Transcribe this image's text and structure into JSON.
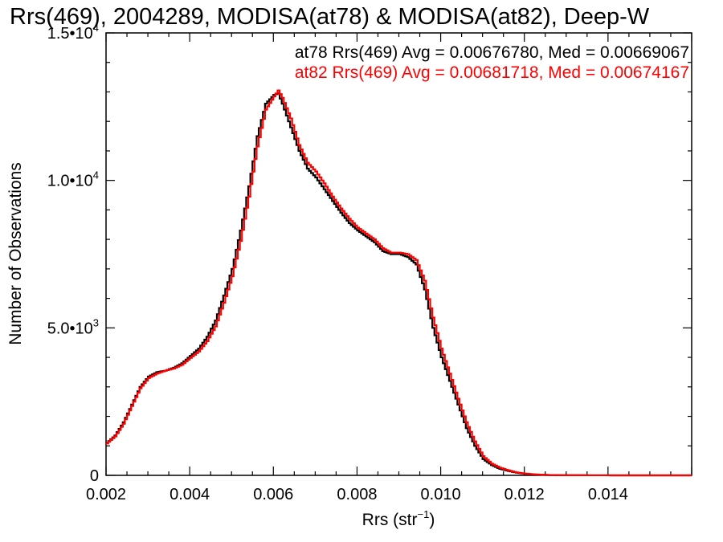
{
  "chart_data": {
    "type": "line",
    "title": "Rrs(469), 2004289, MODISA(at78) & MODISA(at82), Deep-W",
    "xlabel_main": "Rrs (str",
    "xlabel_sup": "−1",
    "xlabel_end": ")",
    "ylabel": "Number of Observations",
    "xlim": [
      0.002,
      0.016
    ],
    "ylim": [
      0,
      15000
    ],
    "x_ticks": [
      {
        "value": 0.002,
        "label": "0.002"
      },
      {
        "value": 0.004,
        "label": "0.004"
      },
      {
        "value": 0.006,
        "label": "0.006"
      },
      {
        "value": 0.008,
        "label": "0.008"
      },
      {
        "value": 0.01,
        "label": "0.010"
      },
      {
        "value": 0.012,
        "label": "0.012"
      },
      {
        "value": 0.014,
        "label": "0.014"
      }
    ],
    "y_ticks": [
      {
        "value": 0,
        "mant": "0",
        "exp": ""
      },
      {
        "value": 5000,
        "mant": "5.0•10",
        "exp": "3"
      },
      {
        "value": 10000,
        "mant": "1.0•10",
        "exp": "4"
      },
      {
        "value": 15000,
        "mant": "1.5•10",
        "exp": "4"
      }
    ],
    "series": [
      {
        "name": "at78",
        "color": "#000000",
        "stats_label": "at78 Rrs(469) Avg = 0.00676780, Med = 0.0066906​7",
        "x": [
          0.002,
          0.0022,
          0.0024,
          0.0026,
          0.0028,
          0.003,
          0.0032,
          0.0034,
          0.0036,
          0.0038,
          0.004,
          0.0042,
          0.0044,
          0.0046,
          0.0048,
          0.005,
          0.0052,
          0.0054,
          0.0056,
          0.0058,
          0.006,
          0.0061,
          0.0062,
          0.0064,
          0.0066,
          0.0068,
          0.007,
          0.0072,
          0.0074,
          0.0076,
          0.0078,
          0.008,
          0.0082,
          0.0084,
          0.0086,
          0.0088,
          0.009,
          0.0092,
          0.0094,
          0.0096,
          0.0098,
          0.01,
          0.0102,
          0.0104,
          0.0106,
          0.0108,
          0.011,
          0.0112,
          0.0114,
          0.0116,
          0.0118,
          0.012,
          0.0122,
          0.0124,
          0.0126,
          0.0128,
          0.013,
          0.0135,
          0.014,
          0.015,
          0.016
        ],
        "y": [
          1100,
          1350,
          1800,
          2400,
          3000,
          3350,
          3500,
          3550,
          3650,
          3800,
          4050,
          4300,
          4700,
          5250,
          6100,
          7000,
          8300,
          9800,
          11500,
          12600,
          12900,
          12950,
          12600,
          11800,
          11000,
          10400,
          10100,
          9700,
          9300,
          8900,
          8550,
          8300,
          8100,
          7900,
          7600,
          7500,
          7500,
          7400,
          7150,
          6300,
          5000,
          4000,
          3200,
          2400,
          1600,
          1000,
          550,
          350,
          220,
          150,
          90,
          55,
          30,
          18,
          10,
          6,
          4,
          2,
          1,
          0,
          0
        ]
      },
      {
        "name": "at82",
        "color": "#ff0000",
        "stats_label": "at82 Rrs(469) Avg = 0.00681718, Med = 0.00674167",
        "x": [
          0.002,
          0.0022,
          0.0024,
          0.0026,
          0.0028,
          0.003,
          0.0032,
          0.0034,
          0.0036,
          0.0038,
          0.004,
          0.0042,
          0.0044,
          0.0046,
          0.0048,
          0.005,
          0.0052,
          0.0054,
          0.0056,
          0.0058,
          0.006,
          0.0061,
          0.0062,
          0.0064,
          0.0066,
          0.0068,
          0.007,
          0.0072,
          0.0074,
          0.0076,
          0.0078,
          0.008,
          0.0082,
          0.0084,
          0.0086,
          0.0088,
          0.009,
          0.0092,
          0.0094,
          0.0096,
          0.0098,
          0.01,
          0.0102,
          0.0104,
          0.0106,
          0.0108,
          0.011,
          0.0112,
          0.0114,
          0.0116,
          0.0118,
          0.012,
          0.0122,
          0.0124,
          0.0126,
          0.0128,
          0.013,
          0.0135,
          0.014,
          0.015,
          0.016
        ],
        "y": [
          1080,
          1320,
          1750,
          2350,
          2950,
          3300,
          3450,
          3550,
          3620,
          3750,
          3980,
          4200,
          4550,
          5050,
          5850,
          6750,
          7950,
          9450,
          11150,
          12400,
          12850,
          13050,
          12800,
          12100,
          11200,
          10600,
          10300,
          9900,
          9450,
          9050,
          8700,
          8400,
          8200,
          8000,
          7700,
          7550,
          7550,
          7500,
          7300,
          6600,
          5350,
          4300,
          3450,
          2600,
          1800,
          1150,
          650,
          400,
          260,
          170,
          100,
          60,
          35,
          20,
          12,
          7,
          4,
          2,
          1,
          0,
          0
        ]
      }
    ]
  }
}
